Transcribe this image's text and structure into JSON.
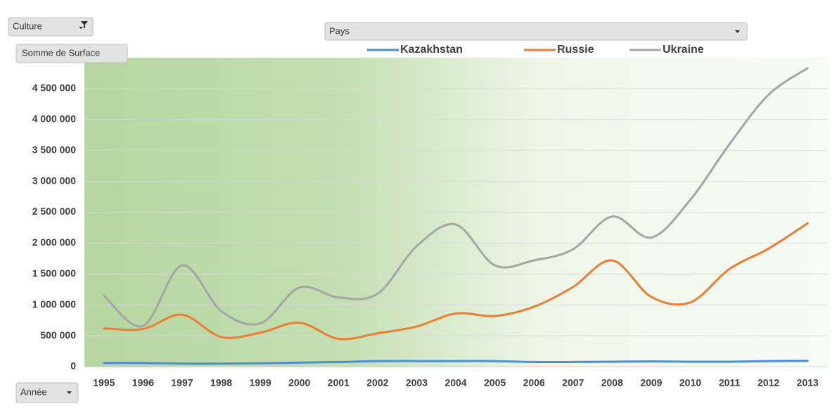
{
  "field_buttons": {
    "filter": "Culture",
    "value": "Somme de Surface",
    "legend": "Pays",
    "axis": "Année"
  },
  "chart_data": {
    "type": "line",
    "categories": [
      "1995",
      "1996",
      "1997",
      "1998",
      "1999",
      "2000",
      "2001",
      "2002",
      "2003",
      "2004",
      "2005",
      "2006",
      "2007",
      "2008",
      "2009",
      "2010",
      "2011",
      "2012",
      "2013"
    ],
    "series": [
      {
        "name": "Kazakhstan",
        "color": "#4a8fd6",
        "values": [
          60000,
          60000,
          50000,
          50000,
          55000,
          65000,
          75000,
          90000,
          90000,
          90000,
          90000,
          75000,
          75000,
          80000,
          85000,
          80000,
          80000,
          90000,
          95000
        ]
      },
      {
        "name": "Russie",
        "color": "#ed7d31",
        "values": [
          620000,
          610000,
          840000,
          480000,
          550000,
          710000,
          450000,
          540000,
          650000,
          860000,
          820000,
          970000,
          1290000,
          1720000,
          1130000,
          1040000,
          1580000,
          1910000,
          2320000
        ]
      },
      {
        "name": "Ukraine",
        "color": "#a5a5a5",
        "values": [
          1150000,
          660000,
          1640000,
          900000,
          700000,
          1280000,
          1120000,
          1180000,
          1950000,
          2300000,
          1640000,
          1720000,
          1900000,
          2430000,
          2090000,
          2700000,
          3600000,
          4400000,
          4830000
        ]
      }
    ],
    "ylim": [
      0,
      5000000
    ],
    "yticks": [
      0,
      {
        "value": 500000,
        "label": "500 000"
      },
      {
        "value": 1000000,
        "label": "1 000 000"
      },
      {
        "value": 1500000,
        "label": "1 500 000"
      },
      {
        "value": 2000000,
        "label": "2 000 000"
      },
      {
        "value": 2500000,
        "label": "2 500 000"
      },
      {
        "value": 3000000,
        "label": "3 000 000"
      },
      {
        "value": 3500000,
        "label": "3 500 000"
      },
      {
        "value": 4000000,
        "label": "4 000 000"
      },
      {
        "value": 4500000,
        "label": "4 500 000"
      }
    ],
    "grid": true,
    "smooth": true,
    "legend": "top"
  }
}
